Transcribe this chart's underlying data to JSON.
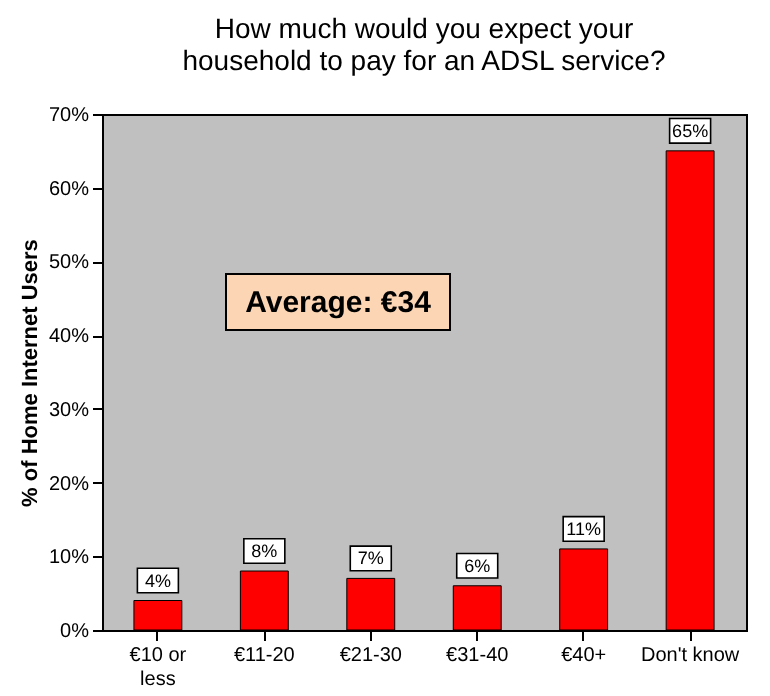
{
  "chart_data": {
    "type": "bar",
    "title": [
      "How much would you expect your",
      "household to pay for an ADSL service?"
    ],
    "ylabel": "% of Home Internet Users",
    "categories": [
      "€10 or less",
      "€11-20",
      "€21-30",
      "€31-40",
      "€40+",
      "Don't know"
    ],
    "values": [
      4,
      8,
      7,
      6,
      11,
      65
    ],
    "value_labels": [
      "4%",
      "8%",
      "7%",
      "6%",
      "11%",
      "65%"
    ],
    "color": "#ff0000",
    "ylim": [
      0,
      70
    ],
    "yticks": [
      {
        "value": 0,
        "label": "0%"
      },
      {
        "value": 10,
        "label": "10%"
      },
      {
        "value": 20,
        "label": "20%"
      },
      {
        "value": 30,
        "label": "30%"
      },
      {
        "value": 40,
        "label": "40%"
      },
      {
        "value": 50,
        "label": "50%"
      },
      {
        "value": 60,
        "label": "60%"
      },
      {
        "value": 70,
        "label": "70%"
      }
    ],
    "grid": false,
    "annotations": [
      "Average: €34"
    ]
  }
}
